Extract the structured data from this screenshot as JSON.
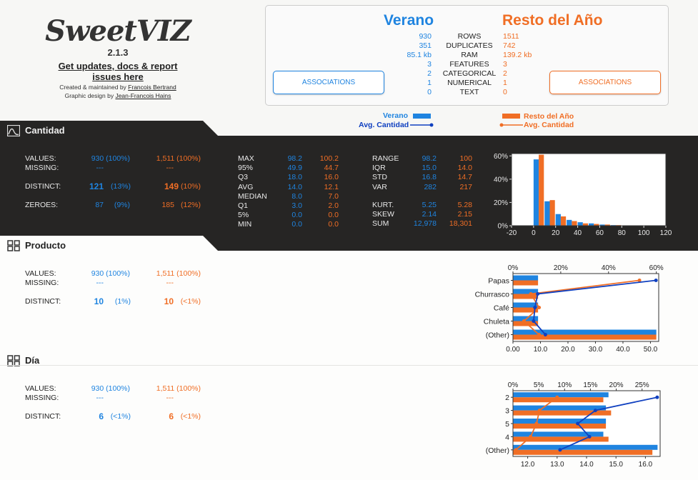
{
  "logo": {
    "brand": "SweetVIZ",
    "version": "2.1.3",
    "updates_link": "Get updates, docs & report issues here",
    "created_prefix": "Created & maintained by ",
    "created_name": "Francois Bertrand",
    "design_prefix": "Graphic design by ",
    "design_name": "Jean-Francois Hains"
  },
  "summary": {
    "source_title": "Verano",
    "compare_title": "Resto del Año",
    "rows": [
      {
        "label": "ROWS",
        "source": "930",
        "compare": "1511"
      },
      {
        "label": "DUPLICATES",
        "source": "351",
        "compare": "742"
      },
      {
        "label": "RAM",
        "source": "85.1 kb",
        "compare": "139.2 kb"
      },
      {
        "label": "FEATURES",
        "source": "3",
        "compare": "3"
      },
      {
        "label": "CATEGORICAL",
        "source": "2",
        "compare": "2"
      },
      {
        "label": "NUMERICAL",
        "source": "1",
        "compare": "1"
      },
      {
        "label": "TEXT",
        "source": "0",
        "compare": "0"
      }
    ],
    "associations_label": "ASSOCIATIONS"
  },
  "legend": {
    "source": "Verano",
    "source_avg": "Avg. Cantidad",
    "compare": "Resto del Año",
    "compare_avg": "Avg. Cantidad"
  },
  "colors": {
    "blue": "#1f84e0",
    "orange": "#f06e25",
    "dark_blue": "#1040c0"
  },
  "features": {
    "cantidad": {
      "name": "Cantidad",
      "values_label": "VALUES:",
      "values_src": "930 (100%)",
      "values_cmp": "1,511 (100%)",
      "missing_label": "MISSING:",
      "missing_src": "---",
      "missing_cmp": "---",
      "distinct_label": "DISTINCT:",
      "distinct_src": "121",
      "distinct_src_pct": "(13%)",
      "distinct_cmp": "149",
      "distinct_cmp_pct": "(10%)",
      "zeroes_label": "ZEROES:",
      "zeroes_src": "87",
      "zeroes_src_pct": "(9%)",
      "zeroes_cmp": "185",
      "zeroes_cmp_pct": "(12%)",
      "stats1": [
        {
          "label": "MAX",
          "src": "98.2",
          "cmp": "100.2"
        },
        {
          "label": "95%",
          "src": "49.9",
          "cmp": "44.7"
        },
        {
          "label": "Q3",
          "src": "18.0",
          "cmp": "16.0"
        },
        {
          "label": "AVG",
          "src": "14.0",
          "cmp": "12.1"
        },
        {
          "label": "MEDIAN",
          "src": "8.0",
          "cmp": "7.0"
        },
        {
          "label": "Q1",
          "src": "3.0",
          "cmp": "2.0"
        },
        {
          "label": "5%",
          "src": "0.0",
          "cmp": "0.0"
        },
        {
          "label": "MIN",
          "src": "0.0",
          "cmp": "0.0"
        }
      ],
      "stats2": [
        {
          "label": "RANGE",
          "src": "98.2",
          "cmp": "100"
        },
        {
          "label": "IQR",
          "src": "15.0",
          "cmp": "14.0"
        },
        {
          "label": "STD",
          "src": "16.8",
          "cmp": "14.7"
        },
        {
          "label": "VAR",
          "src": "282",
          "cmp": "217"
        }
      ],
      "stats3": [
        {
          "label": "KURT.",
          "src": "5.25",
          "cmp": "5.28"
        },
        {
          "label": "SKEW",
          "src": "2.14",
          "cmp": "2.15"
        },
        {
          "label": "SUM",
          "src": "12,978",
          "cmp": "18,301"
        }
      ]
    },
    "producto": {
      "name": "Producto",
      "values_label": "VALUES:",
      "values_src": "930 (100%)",
      "values_cmp": "1,511 (100%)",
      "missing_label": "MISSING:",
      "missing_src": "---",
      "missing_cmp": "---",
      "distinct_label": "DISTINCT:",
      "distinct_src": "10",
      "distinct_src_pct": "(1%)",
      "distinct_cmp": "10",
      "distinct_cmp_pct": "(<1%)"
    },
    "dia": {
      "name": "Día",
      "values_label": "VALUES:",
      "values_src": "930 (100%)",
      "values_cmp": "1,511 (100%)",
      "missing_label": "MISSING:",
      "missing_src": "---",
      "missing_cmp": "---",
      "distinct_label": "DISTINCT:",
      "distinct_src": "6",
      "distinct_src_pct": "(<1%)",
      "distinct_cmp": "6",
      "distinct_cmp_pct": "(<1%)"
    }
  },
  "chart_data": [
    {
      "type": "bar",
      "title": "Cantidad histogram",
      "x": [
        0,
        10,
        20,
        30,
        40,
        50,
        60,
        70,
        80,
        90
      ],
      "xticks": [
        "-20",
        "0",
        "20",
        "40",
        "60",
        "80",
        "100",
        "120"
      ],
      "xlim": [
        -20,
        120
      ],
      "ylim": [
        0,
        62
      ],
      "yticks": [
        "0%",
        "20%",
        "40%",
        "60%"
      ],
      "series": [
        {
          "name": "Verano",
          "values": [
            57,
            21,
            10,
            5,
            3,
            2,
            1,
            0.5,
            0.3,
            0.2
          ]
        },
        {
          "name": "Resto del Año",
          "values": [
            61,
            22,
            8,
            4,
            2,
            1.5,
            1,
            0.5,
            0.3,
            0.2
          ]
        }
      ]
    },
    {
      "type": "bar",
      "title": "Producto",
      "categories": [
        "Papas",
        "Churrasco",
        "Café",
        "Chuleta",
        "(Other)"
      ],
      "top_ticks": [
        "0%",
        "20%",
        "40%",
        "60%"
      ],
      "bottom_ticks": [
        "0.00",
        "10.0",
        "20.0",
        "30.0",
        "40.0",
        "50.0"
      ],
      "series": [
        {
          "name": "Verano",
          "values": [
            10.5,
            10.5,
            10.5,
            10.5,
            60
          ]
        },
        {
          "name": "Resto del Año",
          "values": [
            10.5,
            10.5,
            10.5,
            10.5,
            60
          ]
        },
        {
          "name": "Avg. Cantidad Verano",
          "values": [
            52.0,
            9.0,
            8.0,
            7.5,
            11.8
          ]
        },
        {
          "name": "Avg. Cantidad Resto",
          "values": [
            46.0,
            6.5,
            9.5,
            4.0,
            9.5
          ]
        }
      ]
    },
    {
      "type": "bar",
      "title": "Día",
      "categories": [
        "2",
        "3",
        "5",
        "4",
        "(Other)"
      ],
      "top_ticks": [
        "0%",
        "5%",
        "10%",
        "15%",
        "20%",
        "25%"
      ],
      "bottom_ticks": [
        "12.0",
        "13.0",
        "14.0",
        "15.0",
        "16.0"
      ],
      "series": [
        {
          "name": "Verano",
          "values": [
            18.5,
            18,
            18,
            17.5,
            28
          ]
        },
        {
          "name": "Resto del Año",
          "values": [
            17.5,
            19,
            18,
            18.5,
            27
          ]
        },
        {
          "name": "Avg. Cantidad Verano",
          "values": [
            16.4,
            14.3,
            13.7,
            14.1,
            13.1
          ]
        },
        {
          "name": "Avg. Cantidad Resto",
          "values": [
            13.0,
            12.4,
            12.3,
            12.1,
            11.6
          ]
        }
      ]
    }
  ]
}
